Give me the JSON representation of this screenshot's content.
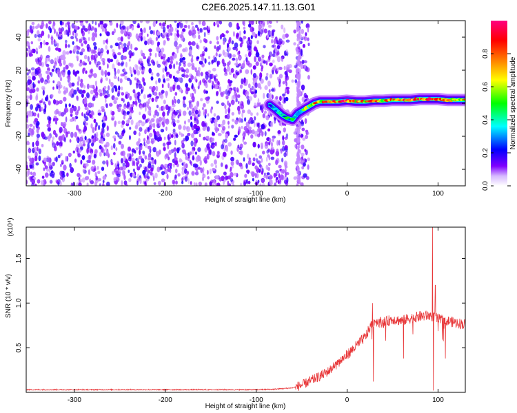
{
  "figure": {
    "title": "C2E6.2025.147.11.13.G01"
  },
  "chart_data": [
    {
      "type": "heatmap",
      "x": {
        "label": "Height of straight line (km)",
        "lim": [
          -353,
          130
        ],
        "ticks": [
          -300,
          -200,
          -100,
          0,
          100
        ]
      },
      "y": {
        "label": "Frequency (Hz)",
        "lim": [
          -50,
          50
        ],
        "ticks": [
          -40,
          -20,
          0,
          20,
          40
        ]
      },
      "colorbar": {
        "label": "Normalized spectral amplitude",
        "lim": [
          0,
          1
        ],
        "ticks": [
          "0.0",
          "0.2",
          "0.4",
          "0.6",
          "0.8"
        ],
        "colormap": [
          "#ffffff",
          "#7f00ff",
          "#0000ff",
          "#00ffff",
          "#00ff00",
          "#ffff00",
          "#ff7f00",
          "#ff0000",
          "#ff0080"
        ]
      },
      "noise_region": {
        "x_range": [
          -353,
          -50
        ],
        "level_range": [
          0.05,
          0.2
        ],
        "vertical_gap_x": [
          -65,
          -55
        ]
      },
      "signal_trace": {
        "x": [
          -85,
          -78,
          -72,
          -66,
          -60,
          -54,
          -48,
          -42,
          -36,
          -30,
          -20,
          -10,
          0,
          10,
          20,
          30,
          40,
          50,
          60,
          70,
          80,
          90,
          100,
          110,
          120,
          130
        ],
        "freq": [
          -1,
          -4,
          -7,
          -9,
          -10,
          -6,
          -4,
          -2,
          0,
          1,
          1,
          1,
          1.5,
          1,
          1,
          1.5,
          1.5,
          2,
          2,
          2,
          2.5,
          2.5,
          2.5,
          2,
          2,
          2
        ],
        "peak_level": [
          0.3,
          0.4,
          0.45,
          0.5,
          0.5,
          0.45,
          0.55,
          0.7,
          0.85,
          0.9,
          0.9,
          0.95,
          0.95,
          0.9,
          0.85,
          0.9,
          0.85,
          0.9,
          0.95,
          0.95,
          0.95,
          0.95,
          0.9,
          0.85,
          0.8,
          0.8
        ]
      }
    },
    {
      "type": "line",
      "x": {
        "label": "Height of straight line (km)",
        "lim": [
          -353,
          130
        ],
        "ticks": [
          -300,
          -200,
          -100,
          0,
          100
        ]
      },
      "y": {
        "label": "SNR (10 * v/v)",
        "scale_label": "(x10⁴)",
        "lim": [
          0,
          1.85
        ],
        "ticks": [
          0.5,
          1.0,
          1.5
        ],
        "tick_labels": [
          "0.5",
          "1.0",
          "1.5"
        ]
      },
      "series": [
        {
          "color": "#e8383a",
          "x": [
            -353,
            -300,
            -250,
            -200,
            -150,
            -100,
            -80,
            -60,
            -50,
            -40,
            -30,
            -20,
            -10,
            0,
            10,
            20,
            25,
            28,
            30,
            40,
            50,
            60,
            70,
            80,
            90,
            95,
            100,
            110,
            120,
            130
          ],
          "y": [
            0.03,
            0.03,
            0.03,
            0.03,
            0.03,
            0.03,
            0.035,
            0.05,
            0.08,
            0.13,
            0.18,
            0.24,
            0.33,
            0.42,
            0.52,
            0.62,
            0.72,
            0.78,
            0.8,
            0.78,
            0.82,
            0.8,
            0.83,
            0.85,
            0.86,
            0.85,
            0.82,
            0.8,
            0.78,
            0.76
          ],
          "spikes": [
            {
              "x": 28,
              "y": 1.0
            },
            {
              "x": 29,
              "y": 0.12
            },
            {
              "x": 62,
              "y": 0.38
            },
            {
              "x": 94,
              "y": 1.85
            },
            {
              "x": 95,
              "y": 0.02
            },
            {
              "x": 97,
              "y": 1.2
            },
            {
              "x": 108,
              "y": 0.38
            }
          ]
        }
      ]
    }
  ]
}
